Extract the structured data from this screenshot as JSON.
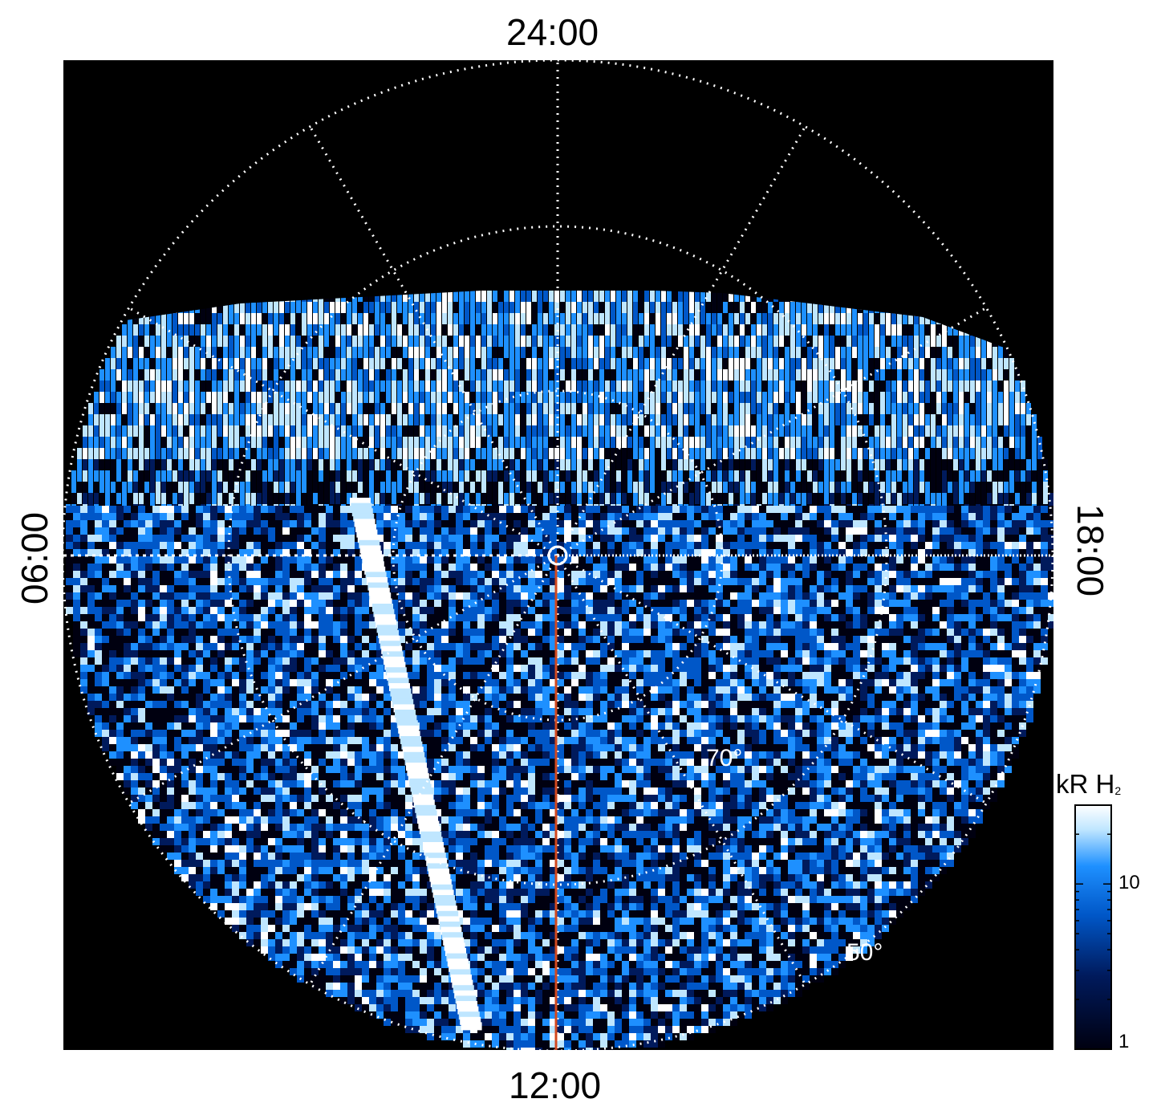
{
  "local_time_labels": {
    "top": "24:00",
    "bottom": "12:00",
    "left": "06:00",
    "right": "18:00"
  },
  "latitude_labels": {
    "inner": "70°",
    "outer": "50°"
  },
  "colorbar": {
    "title_main": "kR H",
    "title_sub": "2",
    "tick_10": "10",
    "tick_1": "1",
    "colors": [
      "#000010",
      "#001a5c",
      "#0057c8",
      "#1e90ff",
      "#bfe6ff",
      "#ffffff"
    ]
  },
  "plot_colors": {
    "background": "#000000",
    "grid": "#ffffff",
    "meridian_line": "#d2481e"
  }
}
